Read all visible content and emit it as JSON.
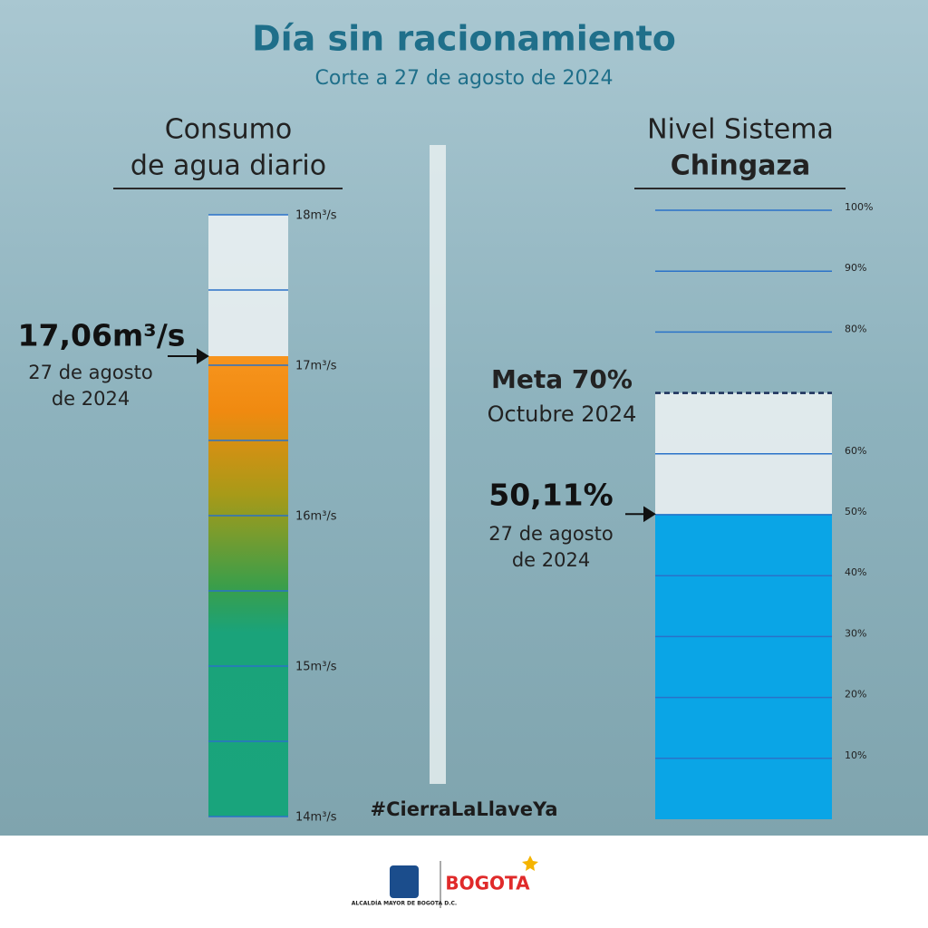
{
  "header": {
    "title": "Día sin racionamiento",
    "subtitle": "Corte a 27 de agosto de 2024"
  },
  "chart_data": [
    {
      "type": "bar",
      "title_lines": [
        "Consumo",
        "de agua diario"
      ],
      "value": 17.06,
      "value_label": "17,06m³/s",
      "annotation_lines": [
        "27 de agosto",
        "de 2024"
      ],
      "ylim": [
        14,
        18
      ],
      "yticks": [
        {
          "value": 14,
          "label": "14m³/s"
        },
        {
          "value": 15,
          "label": "15m³/s"
        },
        {
          "value": 16,
          "label": "16m³/s"
        },
        {
          "value": 17,
          "label": "17m³/s"
        },
        {
          "value": 18,
          "label": "18m³/s"
        }
      ],
      "minor_ticks": [
        14.5,
        15.5,
        16.5,
        17.5
      ],
      "colors": [
        "#f7941d",
        "#1aa37a"
      ],
      "grid": true
    },
    {
      "type": "bar",
      "title_lines": [
        "Nivel Sistema",
        "Chingaza"
      ],
      "value": 50.11,
      "value_label": "50,11%",
      "annotation_lines": [
        "27 de agosto",
        "de 2024"
      ],
      "target": 70,
      "target_lines": [
        "Meta 70%",
        "Octubre 2024"
      ],
      "ylim": [
        0,
        100
      ],
      "yticks": [
        {
          "value": 10,
          "label": "10%"
        },
        {
          "value": 20,
          "label": "20%"
        },
        {
          "value": 30,
          "label": "30%"
        },
        {
          "value": 40,
          "label": "40%"
        },
        {
          "value": 50,
          "label": "50%"
        },
        {
          "value": 60,
          "label": "60%"
        },
        {
          "value": 80,
          "label": "80%"
        },
        {
          "value": 90,
          "label": "90%"
        },
        {
          "value": 100,
          "label": "100%"
        }
      ],
      "colors": [
        "#0aa5e6"
      ],
      "grid": true
    }
  ],
  "hashtag": "#CierraLaLlaveYa",
  "footer": {
    "office": "ALCALDÍA MAYOR DE BOGOTÁ D.C.",
    "brand": "BOGOTA"
  }
}
